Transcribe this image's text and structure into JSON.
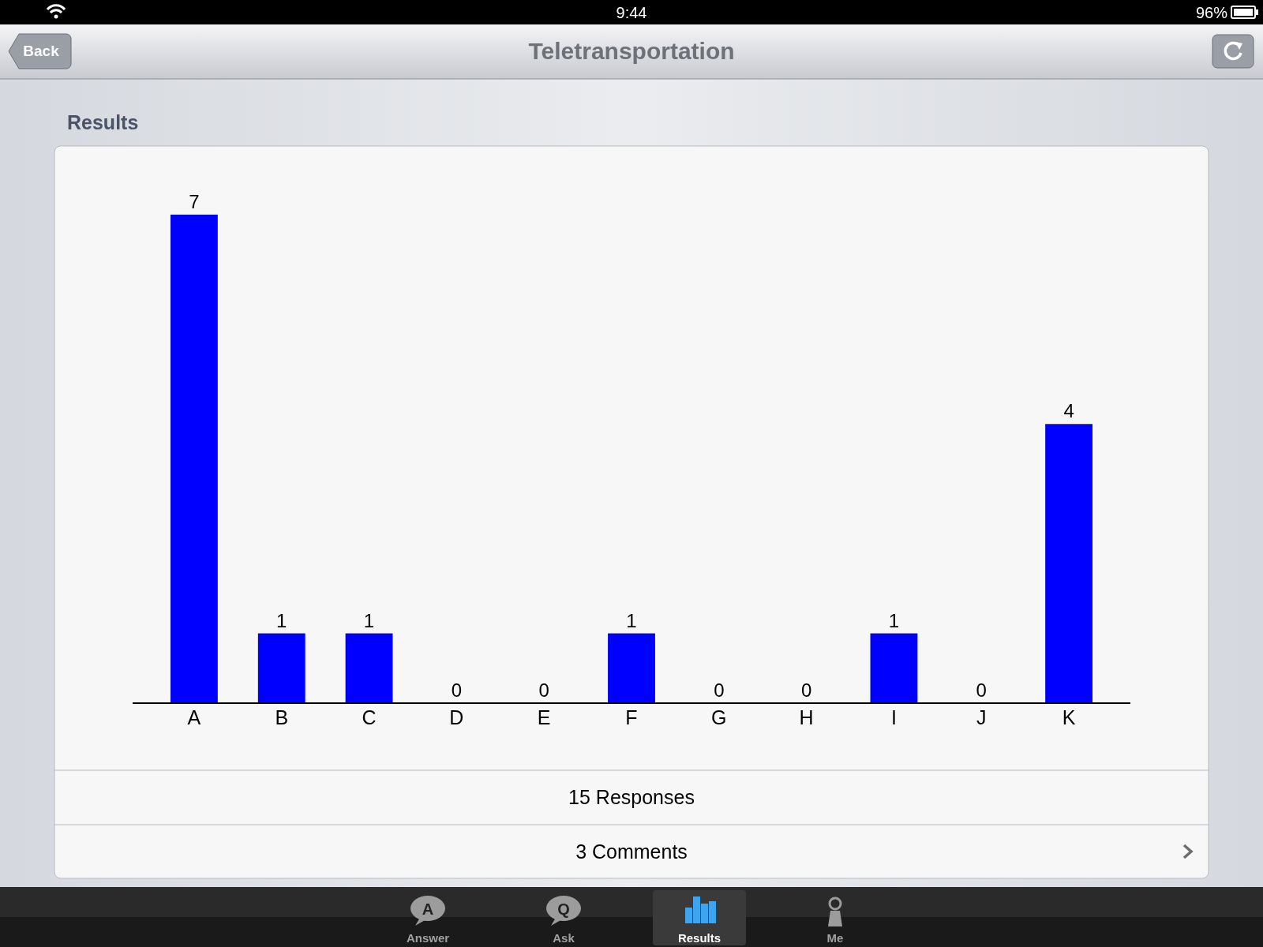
{
  "chart_data": {
    "type": "bar",
    "title": "Teletransportation",
    "subtitle": "Results",
    "categories": [
      "A",
      "B",
      "C",
      "D",
      "E",
      "F",
      "G",
      "H",
      "I",
      "J",
      "K"
    ],
    "values": [
      7,
      1,
      1,
      0,
      0,
      1,
      0,
      0,
      1,
      0,
      4
    ],
    "color": "#0000ff",
    "data_labels": true,
    "annotations": [
      "9:44",
      "96%",
      "Back",
      "15 Responses",
      "3 Comments",
      "Answer",
      "Ask",
      "Results",
      "Me",
      "A",
      "Q"
    ]
  }
}
